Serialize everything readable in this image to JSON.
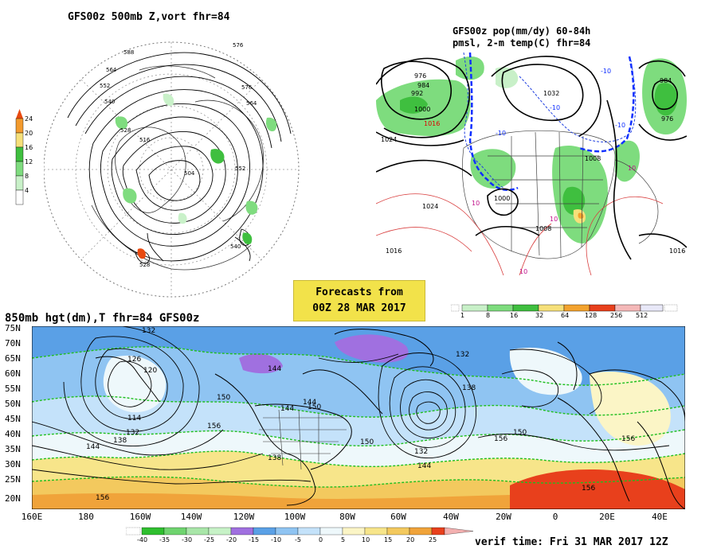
{
  "titles": {
    "nh": "GFS00z  500mb Z,vort   fhr=84",
    "conus_1": "GFS00z pop(mm/dy) 60-84h",
    "conus_2": "pmsl, 2-m temp(C)  fhr=84",
    "main": "850mb hgt(dm),T  fhr=84 GFS00z"
  },
  "banner": {
    "line1": "Forecasts from",
    "line2": "00Z 28 MAR 2017"
  },
  "verif": "verif time: Fri 31 MAR 2017 12Z",
  "vort_scale": {
    "labels": [
      "24",
      "20",
      "16",
      "12",
      "8",
      "4"
    ],
    "colors": [
      "#e84a10",
      "#f39b2e",
      "#f6e07a",
      "#3fbf3f",
      "#7fdc7f",
      "#c9f1c9"
    ]
  },
  "precip_scale": {
    "labels": [
      "1",
      "8",
      "16",
      "32",
      "64",
      "128",
      "256",
      "512"
    ],
    "colors": [
      "#c8f0c8",
      "#7edc7e",
      "#3fbf3f",
      "#f6e07a",
      "#f3a32e",
      "#e8401c",
      "#f4b8b8",
      "#e8e8f8"
    ]
  },
  "temp_scale": {
    "labels": [
      "-40",
      "-35",
      "-30",
      "-25",
      "-20",
      "-15",
      "-10",
      "-5",
      "0",
      "5",
      "10",
      "15",
      "20",
      "25"
    ],
    "colors": [
      "#2fbf2f",
      "#6fd46f",
      "#a8e6a8",
      "#c7f2c7",
      "#a070e0",
      "#5aa0e6",
      "#8fc4f2",
      "#c4e2fa",
      "#eef8fb",
      "#fbf5c6",
      "#f7e58a",
      "#f3c95e",
      "#f0a33a",
      "#e8401c",
      "#f3b0b0"
    ]
  },
  "nh_contours": [
    "576",
    "588",
    "564",
    "552",
    "540",
    "528",
    "516",
    "504",
    "576",
    "564",
    "552",
    "540",
    "528"
  ],
  "conus_contours": [
    "976",
    "984",
    "992",
    "1000",
    "1016",
    "1024",
    "1032",
    "1024",
    "1000",
    "1008",
    "984",
    "976",
    "1016",
    "1008",
    "1016"
  ],
  "conus_temps": [
    "-10",
    "-10",
    "-10",
    "10",
    "10",
    "10",
    "10",
    "-10"
  ],
  "main_contours": [
    "132",
    "126",
    "120",
    "114",
    "132",
    "138",
    "144",
    "150",
    "156",
    "156",
    "144",
    "150",
    "144",
    "138",
    "132",
    "132",
    "144",
    "150",
    "156",
    "156",
    "150",
    "156",
    "144",
    "138"
  ],
  "lat_labels": [
    "75N",
    "70N",
    "65N",
    "60N",
    "55N",
    "50N",
    "45N",
    "40N",
    "35N",
    "30N",
    "25N",
    "20N"
  ],
  "lon_labels": [
    "160E",
    "180",
    "160W",
    "140W",
    "120W",
    "100W",
    "80W",
    "60W",
    "40W",
    "20W",
    "0",
    "20E",
    "40E"
  ]
}
